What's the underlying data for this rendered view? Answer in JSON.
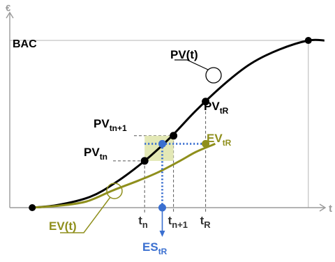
{
  "chart_data": {
    "type": "line",
    "title": "",
    "axes": {
      "x_label": "t",
      "y_label": "€",
      "x_arrow": true,
      "y_arrow": true
    },
    "xlim": [
      0,
      10
    ],
    "ylim": [
      0,
      10
    ],
    "bac": {
      "label": "BAC",
      "value": 9.3
    },
    "series": [
      {
        "name": "PV",
        "label": "PV(t)",
        "color": "#000000",
        "points": [
          [
            0.7,
            0.0
          ],
          [
            1.5,
            0.15
          ],
          [
            2.5,
            0.6
          ],
          [
            3.3,
            1.4
          ],
          [
            4.2,
            2.6
          ],
          [
            5.0,
            3.9
          ],
          [
            5.8,
            5.4
          ],
          [
            6.7,
            6.9
          ],
          [
            7.5,
            8.0
          ],
          [
            8.4,
            8.8
          ],
          [
            9.3,
            9.3
          ],
          [
            9.8,
            9.3
          ]
        ]
      },
      {
        "name": "EV",
        "label": "EV(t)",
        "color": "#8f8f1c",
        "points": [
          [
            0.7,
            0.0
          ],
          [
            1.6,
            0.12
          ],
          [
            2.4,
            0.35
          ],
          [
            3.2,
            0.95
          ],
          [
            4.0,
            1.5
          ],
          [
            4.6,
            1.95
          ],
          [
            5.3,
            2.6
          ],
          [
            5.8,
            3.1
          ],
          [
            6.4,
            3.55
          ]
        ]
      }
    ],
    "markers": [
      {
        "name": "pv-origin-point",
        "x": 0.7,
        "y": 0.0,
        "color": "#000000"
      },
      {
        "name": "pv-tn-point",
        "x": 4.2,
        "y": 2.6,
        "color": "#000000"
      },
      {
        "name": "pv-tn1-point",
        "x": 5.1,
        "y": 4.0,
        "color": "#000000"
      },
      {
        "name": "pv-tr-point",
        "x": 6.1,
        "y": 5.9,
        "color": "#000000"
      },
      {
        "name": "pv-end-point",
        "x": 9.3,
        "y": 9.3,
        "color": "#000000"
      },
      {
        "name": "ev-tr-point",
        "x": 6.1,
        "y": 3.55,
        "color": "#8f8f1c"
      },
      {
        "name": "es-level-point",
        "x": 4.75,
        "y": 3.55,
        "color": "#3a6fd0"
      },
      {
        "name": "es-axis-point",
        "x": 4.75,
        "y": 0.0,
        "color": "#3a6fd0"
      }
    ],
    "time_marks": {
      "tn": 4.2,
      "tn1": 5.1,
      "tR": 6.1,
      "es": 4.75
    },
    "labels": {
      "pv_t": "PV(t)",
      "ev_t": "EV(t)",
      "pv_tr_main": "PV",
      "pv_tr_sub": "tR",
      "pv_tn1_main": "PV",
      "pv_tn1_sub": "tn+1",
      "pv_tn_main": "PV",
      "pv_tn_sub": "tn",
      "ev_tr_main": "EV",
      "ev_tr_sub": "tR",
      "es_main": "ES",
      "es_sub": "tR",
      "tick_tn_main": "t",
      "tick_tn_sub": "n",
      "tick_tn1_main": "t",
      "tick_tn1_sub": "n+1",
      "tick_tr_main": "t",
      "tick_tr_sub": "R"
    },
    "colors": {
      "pv": "#000000",
      "ev": "#8f8f1c",
      "es": "#3a6fd0",
      "shade": "#e3e8b6",
      "guide": "#555555",
      "axis": "#9a9a9a"
    }
  }
}
